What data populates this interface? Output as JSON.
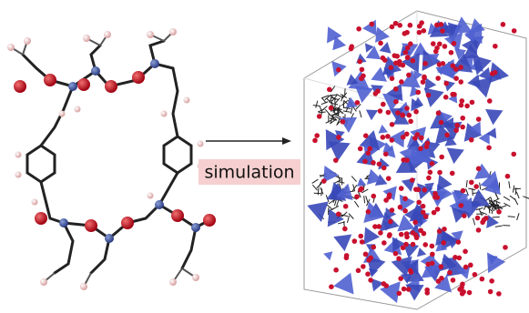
{
  "label": "simulation"
}
